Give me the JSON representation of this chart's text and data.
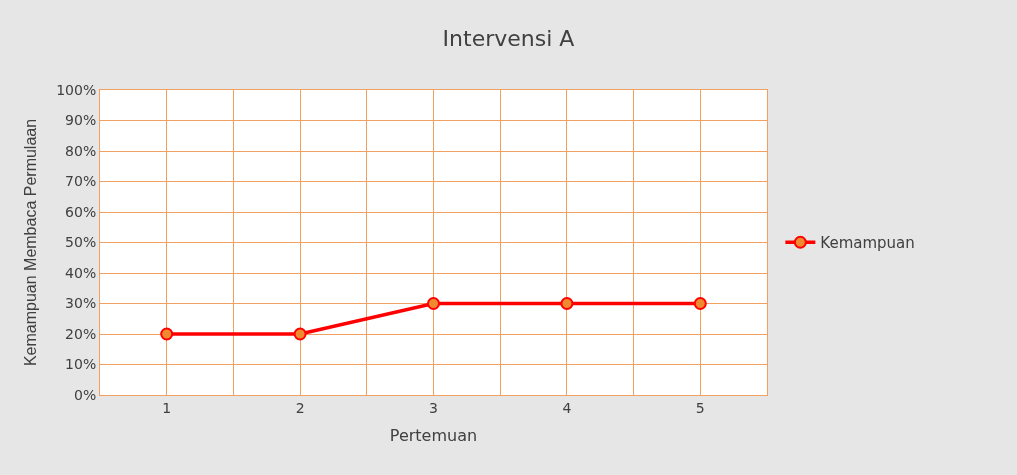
{
  "chart_data": {
    "type": "line",
    "title": "Intervensi A",
    "xlabel": "Pertemuan",
    "ylabel": "Kemampuan Membaca Permulaan",
    "categories": [
      "1",
      "2",
      "3",
      "4",
      "5"
    ],
    "series": [
      {
        "name": "Kemampuan",
        "color": "#ff0000",
        "values": [
          20,
          20,
          30,
          30,
          30
        ]
      }
    ],
    "ylim": [
      0,
      100
    ],
    "yticks": [
      {
        "value": 0,
        "label": "0%"
      },
      {
        "value": 10,
        "label": "10%"
      },
      {
        "value": 20,
        "label": "20%"
      },
      {
        "value": 30,
        "label": "30%"
      },
      {
        "value": 40,
        "label": "40%"
      },
      {
        "value": 50,
        "label": "50%"
      },
      {
        "value": 60,
        "label": "60%"
      },
      {
        "value": 70,
        "label": "70%"
      },
      {
        "value": 80,
        "label": "80%"
      },
      {
        "value": 90,
        "label": "90%"
      },
      {
        "value": 100,
        "label": "100%"
      }
    ],
    "grid": true,
    "legend": "right",
    "marker": "circle",
    "line_style": "solid"
  }
}
